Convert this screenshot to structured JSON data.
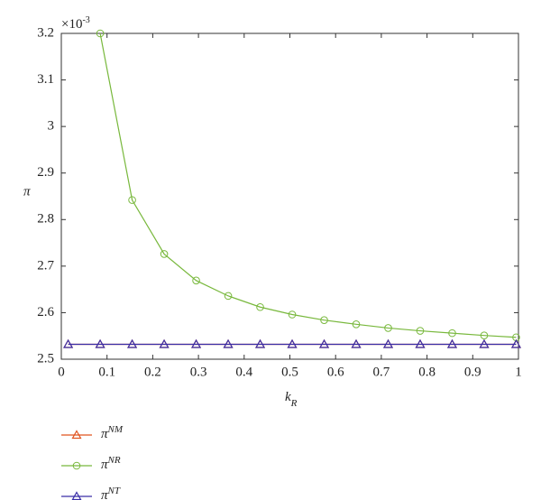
{
  "chart_data": {
    "type": "line",
    "x_label": {
      "text": "k",
      "subscript": "R"
    },
    "y_label": "π",
    "axis_multiplier": {
      "base": "×10",
      "exponent": "-3"
    },
    "xlim": [
      0,
      1
    ],
    "xticks": [
      0,
      0.1,
      0.2,
      0.3,
      0.4,
      0.5,
      0.6,
      0.7,
      0.8,
      0.9,
      1
    ],
    "ylim": [
      2.5,
      3.2
    ],
    "yticks": [
      2.5,
      2.6,
      2.7,
      2.8,
      2.9,
      3,
      3.1,
      3.2
    ],
    "legend": "bottom-left",
    "series": [
      {
        "name": "π",
        "name_superscript": "NM",
        "color": "#e0531f",
        "marker": "triangle",
        "x": [
          0.015,
          0.085,
          0.155,
          0.225,
          0.295,
          0.365,
          0.435,
          0.505,
          0.575,
          0.645,
          0.715,
          0.785,
          0.855,
          0.925,
          0.995
        ],
        "values": [
          2.532,
          2.532,
          2.532,
          2.532,
          2.532,
          2.532,
          2.532,
          2.532,
          2.532,
          2.532,
          2.532,
          2.532,
          2.532,
          2.532,
          2.532
        ]
      },
      {
        "name": "π",
        "name_superscript": "NR",
        "color": "#78b83c",
        "marker": "circle",
        "x": [
          0.085,
          0.155,
          0.225,
          0.295,
          0.365,
          0.435,
          0.505,
          0.575,
          0.645,
          0.715,
          0.785,
          0.855,
          0.925,
          0.995
        ],
        "values": [
          3.2,
          2.842,
          2.726,
          2.669,
          2.636,
          2.612,
          2.596,
          2.584,
          2.575,
          2.567,
          2.561,
          2.556,
          2.551,
          2.547
        ]
      },
      {
        "name": "π",
        "name_superscript": "NT",
        "color": "#3a2fa8",
        "marker": "triangle",
        "x": [
          0.015,
          0.085,
          0.155,
          0.225,
          0.295,
          0.365,
          0.435,
          0.505,
          0.575,
          0.645,
          0.715,
          0.785,
          0.855,
          0.925,
          0.995
        ],
        "values": [
          2.532,
          2.532,
          2.532,
          2.532,
          2.532,
          2.532,
          2.532,
          2.532,
          2.532,
          2.532,
          2.532,
          2.532,
          2.532,
          2.532,
          2.532
        ]
      }
    ]
  }
}
